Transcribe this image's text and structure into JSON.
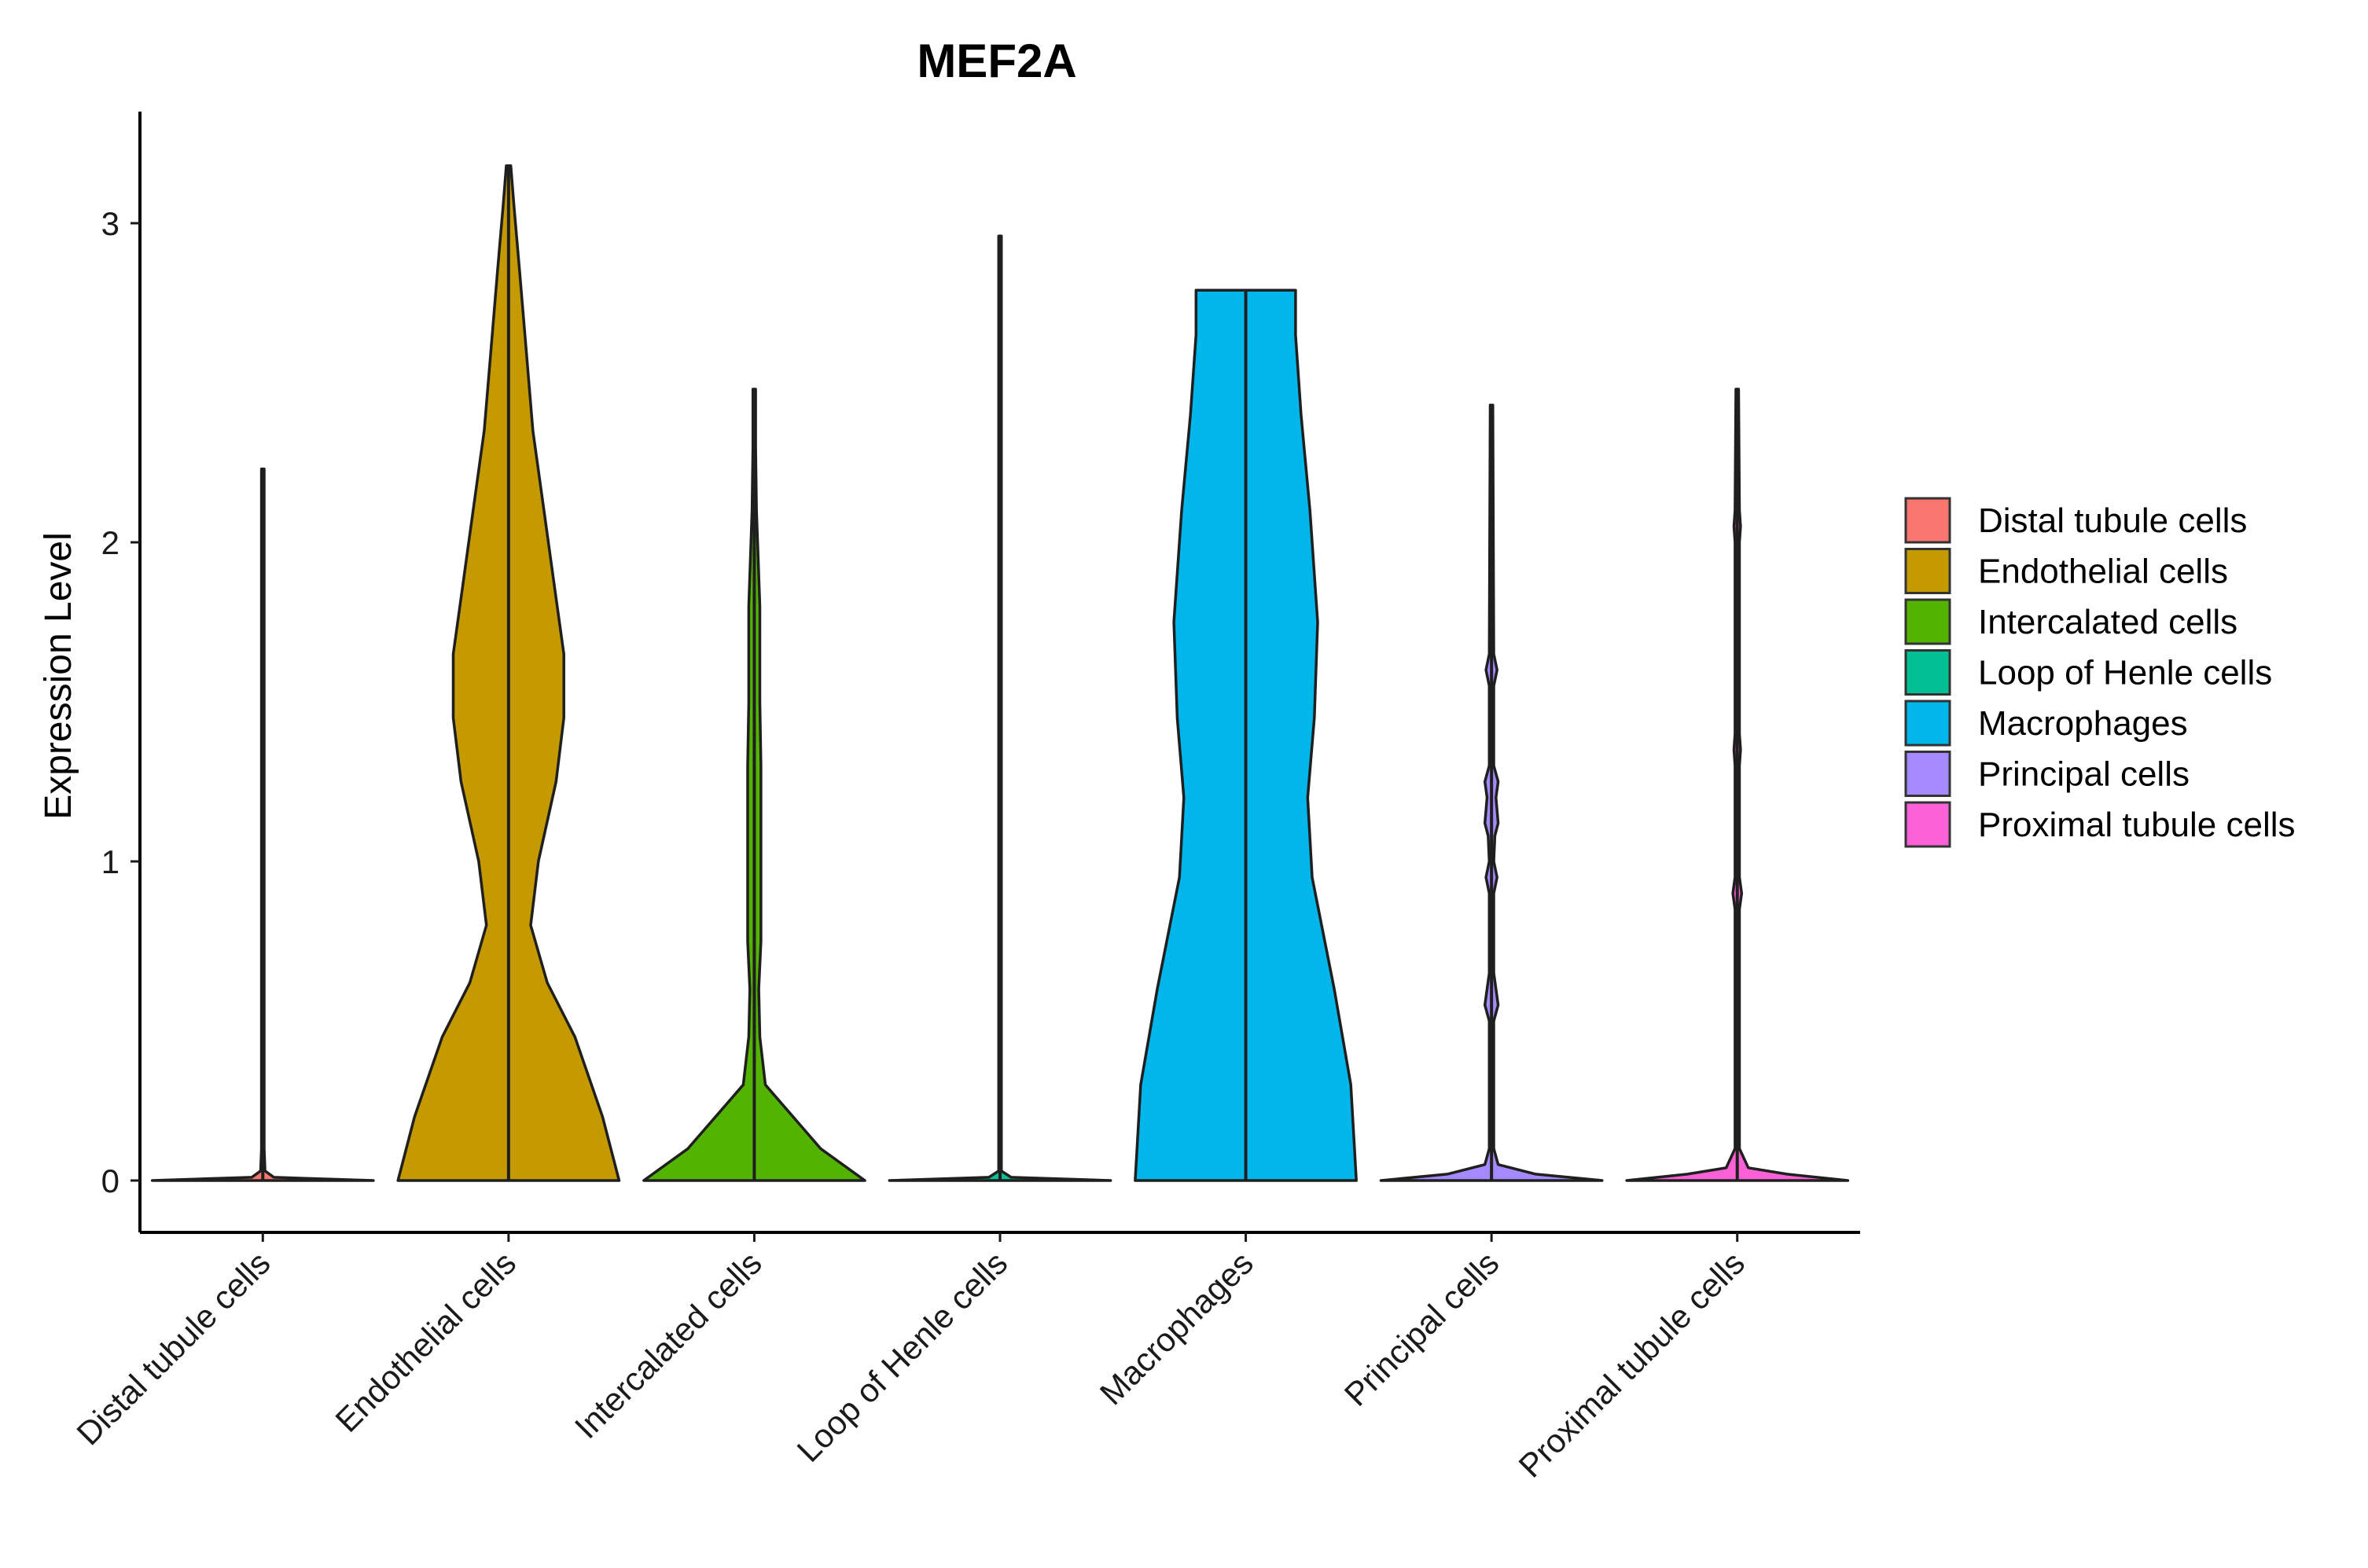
{
  "chart_data": {
    "type": "violin",
    "title": "MEF2A",
    "xlabel": "",
    "ylabel": "Expression Level",
    "ylim": [
      -0.15,
      3.35
    ],
    "yticks": [
      0,
      1,
      2,
      3
    ],
    "ytick_labels": [
      "0",
      "1",
      "2",
      "3"
    ],
    "categories": [
      "Distal tubule cells",
      "Endothelial cells",
      "Intercalated cells",
      "Loop of Henle cells",
      "Macrophages",
      "Principal cells",
      "Proximal tubule cells"
    ],
    "colors": [
      "#F8766D",
      "#C49A00",
      "#53B400",
      "#00C094",
      "#00B6EB",
      "#A58AFF",
      "#FB61D7"
    ],
    "max_values": [
      2.23,
      3.18,
      2.48,
      2.96,
      2.79,
      2.43,
      2.48
    ],
    "densities": [
      [
        [
          0,
          1.0
        ],
        [
          0.01,
          0.1
        ],
        [
          0.03,
          0.02
        ],
        [
          0.1,
          0.012
        ],
        [
          2.23,
          0.012
        ]
      ],
      [
        [
          0,
          1.0
        ],
        [
          0.2,
          0.85
        ],
        [
          0.45,
          0.6
        ],
        [
          0.62,
          0.35
        ],
        [
          0.8,
          0.2
        ],
        [
          1.0,
          0.27
        ],
        [
          1.25,
          0.43
        ],
        [
          1.45,
          0.5
        ],
        [
          1.65,
          0.5
        ],
        [
          1.85,
          0.42
        ],
        [
          2.1,
          0.32
        ],
        [
          2.35,
          0.22
        ],
        [
          2.6,
          0.16
        ],
        [
          2.85,
          0.1
        ],
        [
          3.05,
          0.05
        ],
        [
          3.18,
          0.02
        ]
      ],
      [
        [
          0,
          1.0
        ],
        [
          0.1,
          0.6
        ],
        [
          0.2,
          0.35
        ],
        [
          0.3,
          0.1
        ],
        [
          0.45,
          0.05
        ],
        [
          0.6,
          0.04
        ],
        [
          0.75,
          0.06
        ],
        [
          1.0,
          0.06
        ],
        [
          1.3,
          0.06
        ],
        [
          1.5,
          0.05
        ],
        [
          1.8,
          0.05
        ],
        [
          2.1,
          0.02
        ],
        [
          2.3,
          0.012
        ],
        [
          2.48,
          0.012
        ]
      ],
      [
        [
          0,
          1.0
        ],
        [
          0.01,
          0.1
        ],
        [
          0.03,
          0.012
        ],
        [
          2.96,
          0.012
        ]
      ],
      [
        [
          0,
          1.0
        ],
        [
          0.3,
          0.95
        ],
        [
          0.6,
          0.8
        ],
        [
          0.95,
          0.6
        ],
        [
          1.2,
          0.56
        ],
        [
          1.45,
          0.62
        ],
        [
          1.75,
          0.65
        ],
        [
          2.1,
          0.58
        ],
        [
          2.4,
          0.5
        ],
        [
          2.65,
          0.45
        ],
        [
          2.79,
          0.45
        ]
      ],
      [
        [
          0,
          1.0
        ],
        [
          0.02,
          0.4
        ],
        [
          0.05,
          0.06
        ],
        [
          0.1,
          0.02
        ],
        [
          0.5,
          0.02
        ],
        [
          0.55,
          0.06
        ],
        [
          0.65,
          0.02
        ],
        [
          0.9,
          0.02
        ],
        [
          0.95,
          0.05
        ],
        [
          1.0,
          0.02
        ],
        [
          1.08,
          0.03
        ],
        [
          1.12,
          0.06
        ],
        [
          1.2,
          0.04
        ],
        [
          1.25,
          0.06
        ],
        [
          1.3,
          0.02
        ],
        [
          1.55,
          0.02
        ],
        [
          1.6,
          0.05
        ],
        [
          1.65,
          0.02
        ],
        [
          2.43,
          0.012
        ]
      ],
      [
        [
          0,
          1.0
        ],
        [
          0.02,
          0.45
        ],
        [
          0.04,
          0.1
        ],
        [
          0.1,
          0.02
        ],
        [
          0.85,
          0.02
        ],
        [
          0.9,
          0.04
        ],
        [
          0.95,
          0.02
        ],
        [
          1.3,
          0.02
        ],
        [
          1.35,
          0.03
        ],
        [
          1.4,
          0.02
        ],
        [
          2.0,
          0.02
        ],
        [
          2.05,
          0.03
        ],
        [
          2.1,
          0.02
        ],
        [
          2.48,
          0.012
        ]
      ]
    ],
    "legend": {
      "position": "right",
      "entries": [
        "Distal tubule cells",
        "Endothelial cells",
        "Intercalated cells",
        "Loop of Henle cells",
        "Macrophages",
        "Principal cells",
        "Proximal tubule cells"
      ]
    }
  }
}
